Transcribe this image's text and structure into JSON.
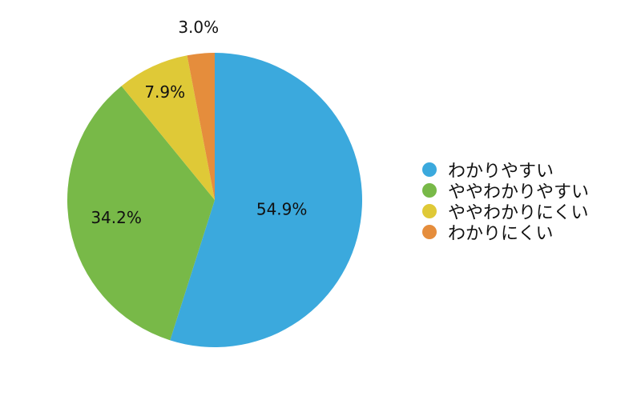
{
  "chart_data": {
    "type": "pie",
    "categories": [
      "わかりやすい",
      "ややわかりやすい",
      "ややわかりにくい",
      "わかりにくい"
    ],
    "values": [
      54.9,
      34.2,
      7.9,
      3.0
    ],
    "data_labels": [
      "54.9%",
      "34.2%",
      "7.9%",
      "3.0%"
    ],
    "colors": [
      "#3ba9dd",
      "#78b948",
      "#dfc937",
      "#e58d3c"
    ],
    "legend_position": "right",
    "start": "12 o'clock, clockwise"
  }
}
